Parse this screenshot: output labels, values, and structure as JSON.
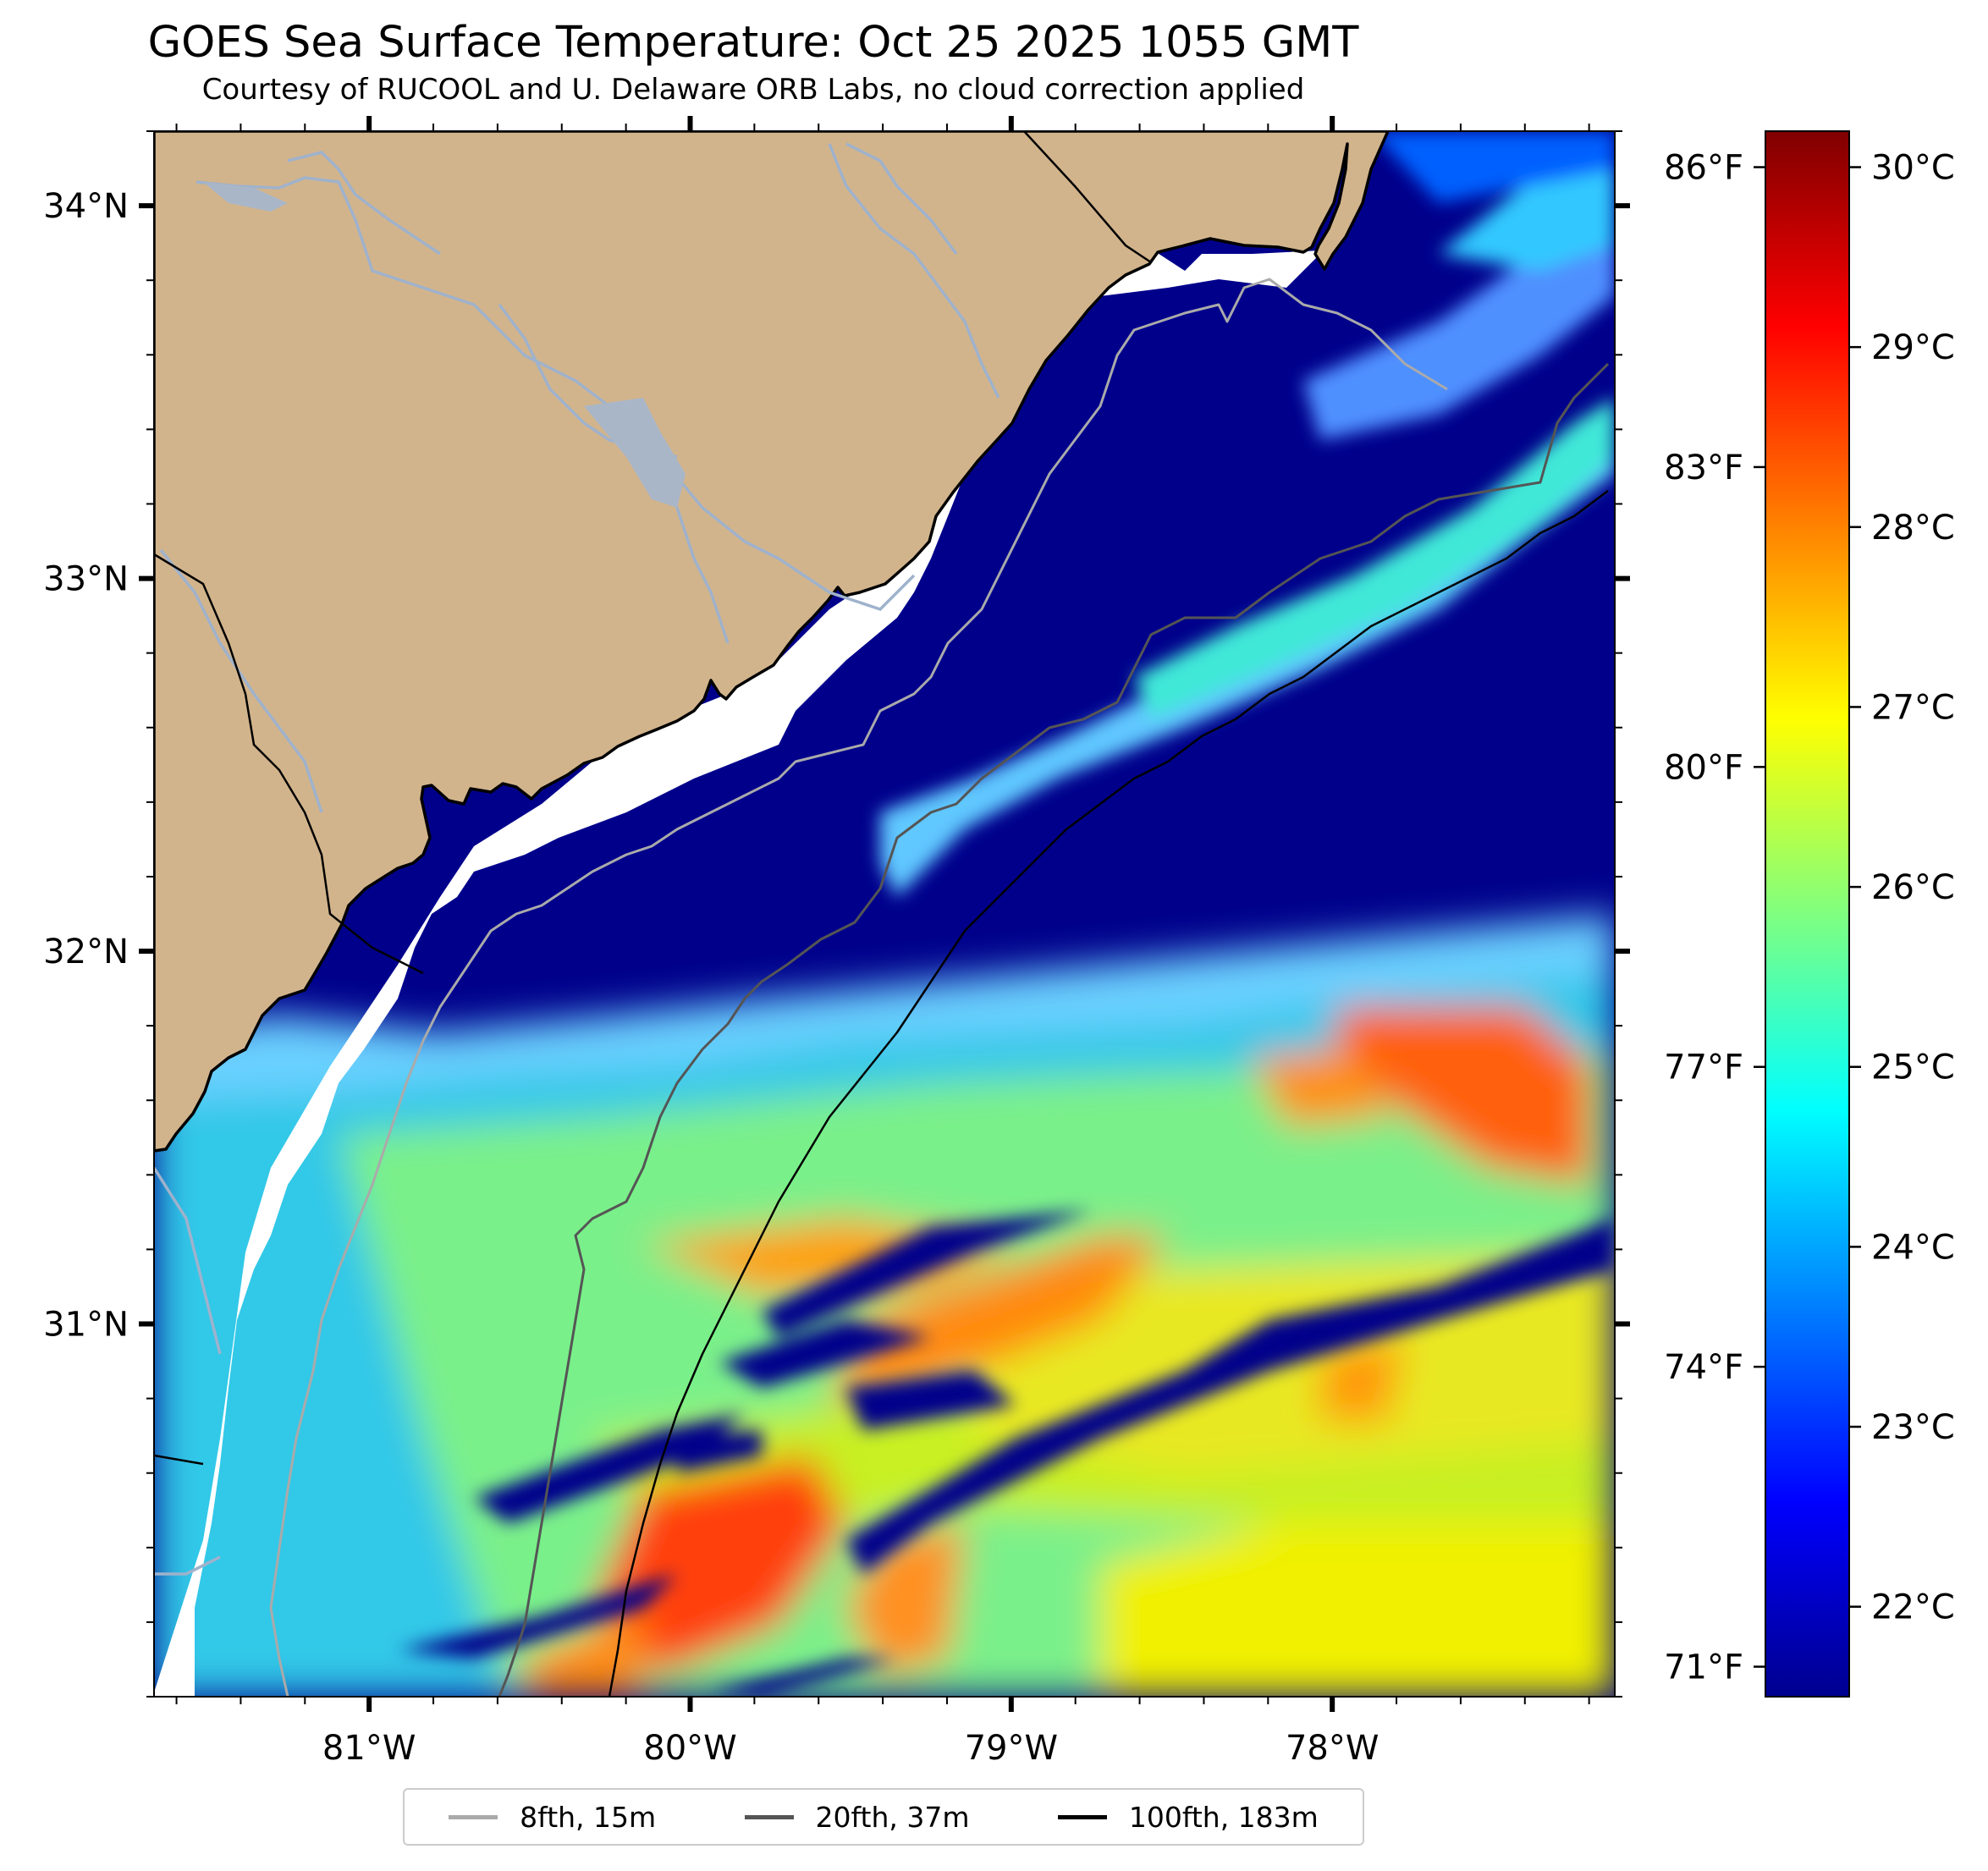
{
  "title": "GOES Sea Surface Temperature: Oct 25 2025 1055 GMT",
  "subtitle": "Courtesy of RUCOOL and U. Delaware ORB Labs, no cloud correction applied",
  "map": {
    "lon_range": [
      -81.67,
      -77.12
    ],
    "lat_range": [
      30.0,
      34.2
    ],
    "lon_ticks": [
      {
        "value": -81,
        "label": "81°W"
      },
      {
        "value": -80,
        "label": "80°W"
      },
      {
        "value": -79,
        "label": "79°W"
      },
      {
        "value": -78,
        "label": "78°W"
      }
    ],
    "lat_ticks": [
      {
        "value": 34,
        "label": "34°N"
      },
      {
        "value": 33,
        "label": "33°N"
      },
      {
        "value": 32,
        "label": "32°N"
      },
      {
        "value": 31,
        "label": "31°N"
      }
    ],
    "colors": {
      "land": "#d2b48c",
      "coastline": "#000000",
      "rivers": "#9fb2cc",
      "no_data": "#ffffff",
      "cold_water": "#00008b"
    }
  },
  "colorbar": {
    "colormap": "jet",
    "celsius_range": [
      21.5,
      30.2
    ],
    "celsius_ticks": [
      {
        "value": 30,
        "label": "30°C"
      },
      {
        "value": 29,
        "label": "29°C"
      },
      {
        "value": 28,
        "label": "28°C"
      },
      {
        "value": 27,
        "label": "27°C"
      },
      {
        "value": 26,
        "label": "26°C"
      },
      {
        "value": 25,
        "label": "25°C"
      },
      {
        "value": 24,
        "label": "24°C"
      },
      {
        "value": 23,
        "label": "23°C"
      },
      {
        "value": 22,
        "label": "22°C"
      }
    ],
    "fahrenheit_ticks": [
      {
        "value": 86,
        "label": "86°F"
      },
      {
        "value": 83,
        "label": "83°F"
      },
      {
        "value": 80,
        "label": "80°F"
      },
      {
        "value": 77,
        "label": "77°F"
      },
      {
        "value": 74,
        "label": "74°F"
      },
      {
        "value": 71,
        "label": "71°F"
      }
    ]
  },
  "legend": [
    {
      "label": "8fth, 15m",
      "color": "#aaaaaa"
    },
    {
      "label": "20fth, 37m",
      "color": "#555555"
    },
    {
      "label": "100fth, 183m",
      "color": "#000000"
    }
  ]
}
